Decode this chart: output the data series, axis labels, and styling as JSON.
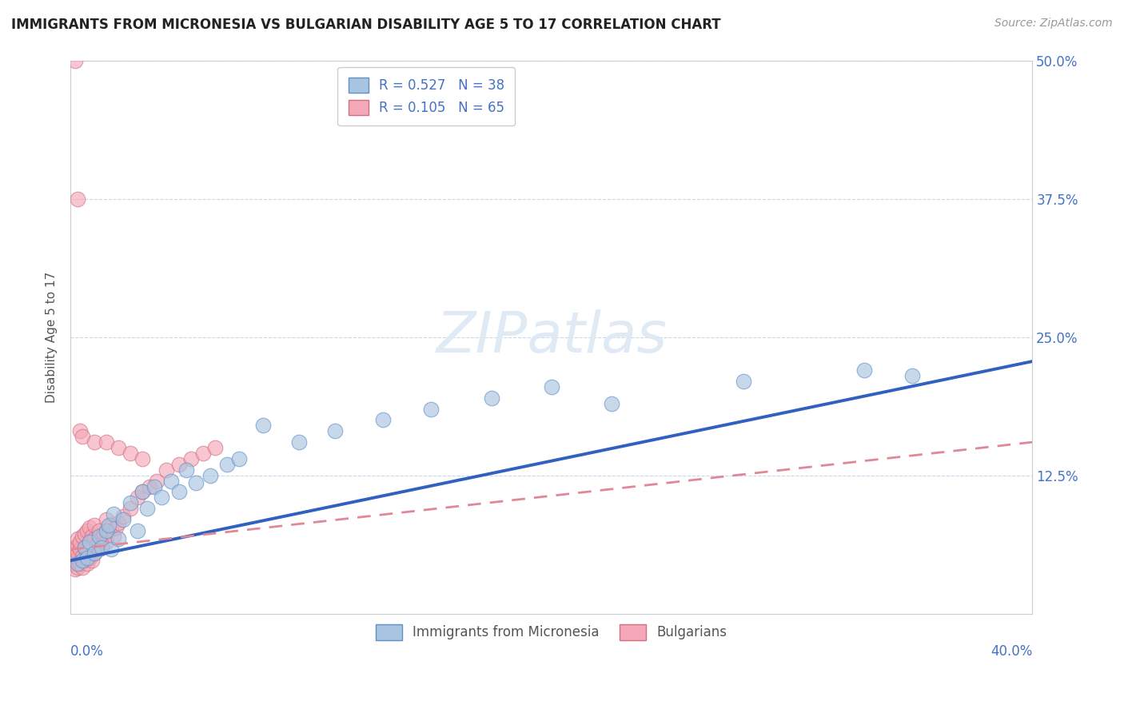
{
  "title": "IMMIGRANTS FROM MICRONESIA VS BULGARIAN DISABILITY AGE 5 TO 17 CORRELATION CHART",
  "source": "Source: ZipAtlas.com",
  "ylabel_label": "Disability Age 5 to 17",
  "xlim": [
    0.0,
    0.4
  ],
  "ylim": [
    0.0,
    0.5
  ],
  "ytick_vals": [
    0.125,
    0.25,
    0.375,
    0.5
  ],
  "ytick_labels": [
    "12.5%",
    "25.0%",
    "37.5%",
    "50.0%"
  ],
  "legend_r1": "R = 0.527",
  "legend_n1": "N = 38",
  "legend_r2": "R = 0.105",
  "legend_n2": "N = 65",
  "legend_label1": "Immigrants from Micronesia",
  "legend_label2": "Bulgarians",
  "color_blue": "#a8c4e0",
  "color_pink": "#f4a8b8",
  "trendline_blue": "#3060c0",
  "trendline_pink": "#e08898",
  "blue_trend_x": [
    0.0,
    0.4
  ],
  "blue_trend_y": [
    0.048,
    0.228
  ],
  "pink_trend_x": [
    0.0,
    0.4
  ],
  "pink_trend_y": [
    0.058,
    0.155
  ],
  "watermark": "ZIPatlas",
  "micronesia_x": [
    0.003,
    0.005,
    0.006,
    0.007,
    0.008,
    0.01,
    0.012,
    0.013,
    0.015,
    0.016,
    0.017,
    0.018,
    0.02,
    0.022,
    0.025,
    0.028,
    0.03,
    0.032,
    0.035,
    0.038,
    0.042,
    0.045,
    0.048,
    0.052,
    0.058,
    0.065,
    0.07,
    0.08,
    0.095,
    0.11,
    0.13,
    0.15,
    0.175,
    0.2,
    0.225,
    0.28,
    0.33,
    0.35
  ],
  "micronesia_y": [
    0.045,
    0.048,
    0.06,
    0.05,
    0.065,
    0.055,
    0.07,
    0.06,
    0.075,
    0.08,
    0.058,
    0.09,
    0.068,
    0.085,
    0.1,
    0.075,
    0.11,
    0.095,
    0.115,
    0.105,
    0.12,
    0.11,
    0.13,
    0.118,
    0.125,
    0.135,
    0.14,
    0.17,
    0.155,
    0.165,
    0.175,
    0.185,
    0.195,
    0.205,
    0.19,
    0.21,
    0.22,
    0.215
  ],
  "bulgarian_x": [
    0.001,
    0.001,
    0.001,
    0.002,
    0.002,
    0.002,
    0.002,
    0.002,
    0.003,
    0.003,
    0.003,
    0.003,
    0.003,
    0.004,
    0.004,
    0.004,
    0.005,
    0.005,
    0.005,
    0.006,
    0.006,
    0.006,
    0.007,
    0.007,
    0.007,
    0.008,
    0.008,
    0.008,
    0.009,
    0.009,
    0.01,
    0.01,
    0.01,
    0.011,
    0.012,
    0.012,
    0.013,
    0.014,
    0.015,
    0.015,
    0.016,
    0.017,
    0.018,
    0.019,
    0.02,
    0.022,
    0.025,
    0.028,
    0.03,
    0.033,
    0.036,
    0.04,
    0.045,
    0.05,
    0.055,
    0.06,
    0.002,
    0.003,
    0.004,
    0.005,
    0.01,
    0.015,
    0.02,
    0.025,
    0.03
  ],
  "bulgarian_y": [
    0.045,
    0.05,
    0.055,
    0.04,
    0.048,
    0.052,
    0.058,
    0.06,
    0.042,
    0.05,
    0.055,
    0.062,
    0.068,
    0.045,
    0.058,
    0.065,
    0.042,
    0.052,
    0.07,
    0.048,
    0.06,
    0.072,
    0.045,
    0.058,
    0.075,
    0.05,
    0.065,
    0.078,
    0.048,
    0.07,
    0.055,
    0.068,
    0.08,
    0.062,
    0.058,
    0.075,
    0.068,
    0.072,
    0.065,
    0.085,
    0.075,
    0.08,
    0.07,
    0.078,
    0.082,
    0.088,
    0.095,
    0.105,
    0.11,
    0.115,
    0.12,
    0.13,
    0.135,
    0.14,
    0.145,
    0.15,
    0.5,
    0.375,
    0.165,
    0.16,
    0.155,
    0.155,
    0.15,
    0.145,
    0.14
  ]
}
